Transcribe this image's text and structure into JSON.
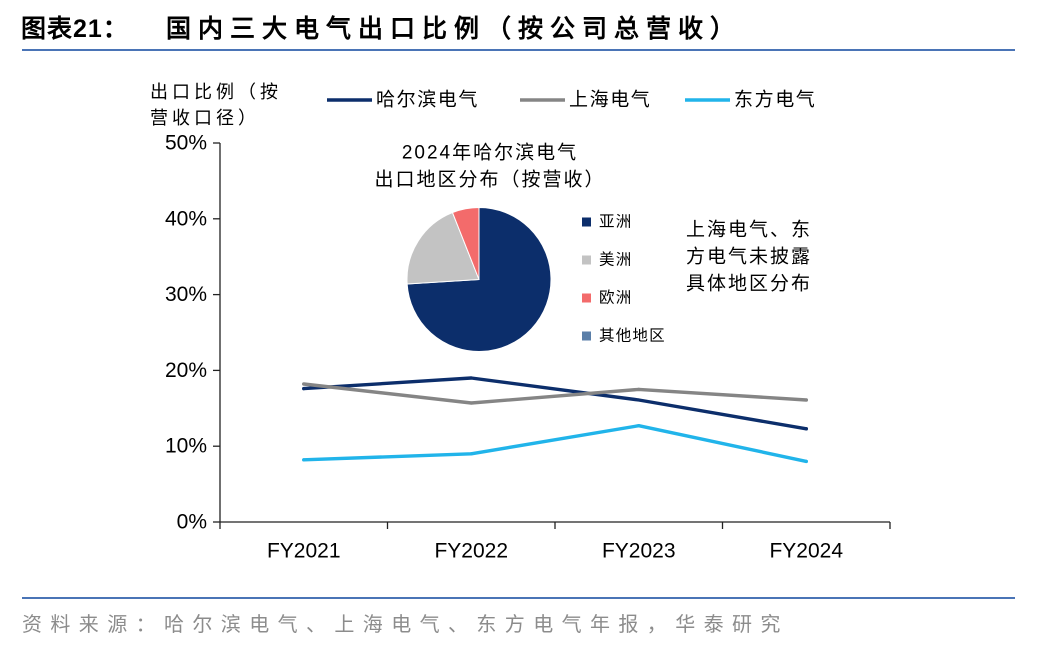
{
  "header": {
    "figure_label": "图表21：",
    "title": "国内三大电气出口比例（按公司总营收）"
  },
  "footer": {
    "source": "资料来源：哈尔滨电气、上海电气、东方电气年报，华泰研究"
  },
  "colors": {
    "rule": "#4a74b6",
    "source_text": "#8c8c8c",
    "axis": "#222222"
  },
  "chart_data": [
    {
      "type": "line",
      "ylabel": [
        "出口比例（按",
        "营收口径）"
      ],
      "xlabel": "",
      "categories": [
        "FY2021",
        "FY2022",
        "FY2023",
        "FY2024"
      ],
      "ylim": [
        0,
        50
      ],
      "yticks": [
        0,
        10,
        20,
        30,
        40,
        50
      ],
      "ytick_labels": [
        "0%",
        "10%",
        "20%",
        "30%",
        "40%",
        "50%"
      ],
      "grid": false,
      "legend": "top",
      "series": [
        {
          "name": "哈尔滨电气",
          "color": "#0c2e6b",
          "values": [
            17.6,
            19.0,
            16.1,
            12.3
          ]
        },
        {
          "name": "上海电气",
          "color": "#858585",
          "values": [
            18.2,
            15.7,
            17.5,
            16.1
          ]
        },
        {
          "name": "东方电气",
          "color": "#21b4ea",
          "values": [
            8.2,
            9.0,
            12.7,
            8.0
          ]
        }
      ]
    },
    {
      "type": "pie",
      "title": [
        "2024年哈尔滨电气",
        "出口地区分布（按营收）"
      ],
      "labels": [
        "亚洲",
        "美洲",
        "欧洲",
        "其他地区"
      ],
      "values": [
        74,
        20,
        6,
        0
      ],
      "colors": [
        "#0c2e6b",
        "#c3c3c3",
        "#f36b6b",
        "#5a7ea8"
      ],
      "legend": "right",
      "note": [
        "上海电气、东",
        "方电气未披露",
        "具体地区分布"
      ]
    }
  ]
}
